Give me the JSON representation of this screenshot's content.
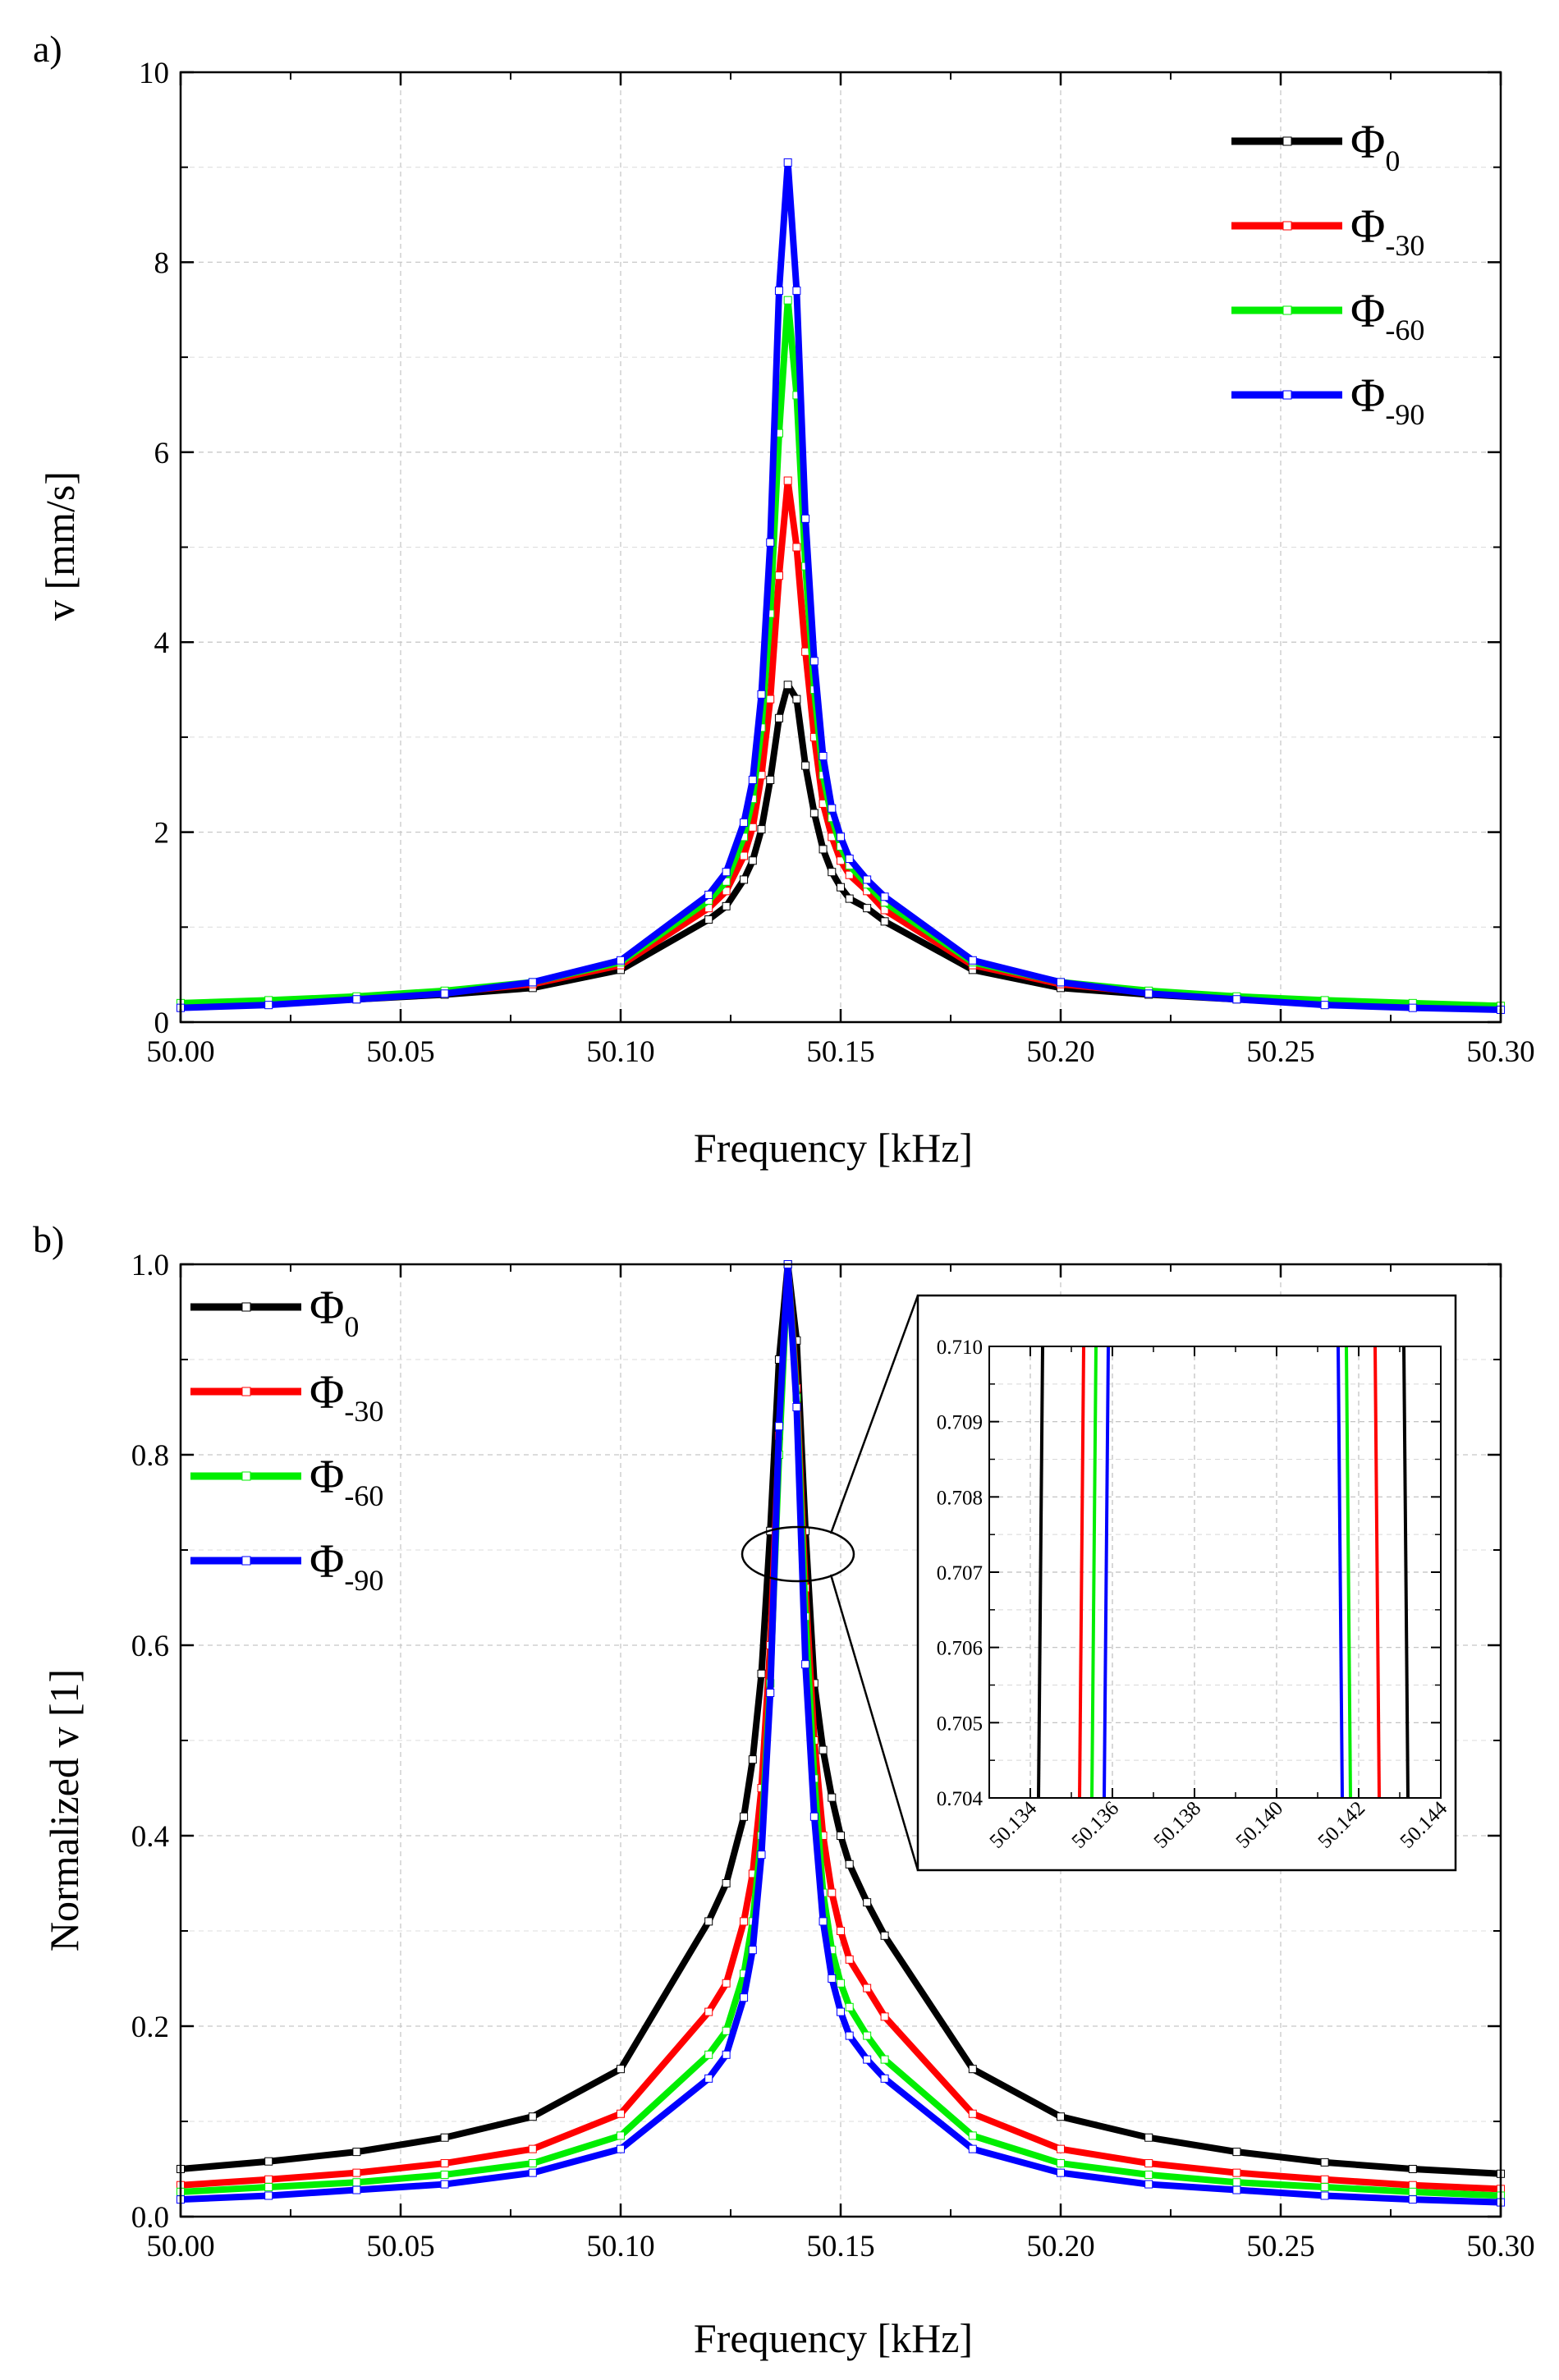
{
  "chart_data": [
    {
      "panel": "a)",
      "type": "line",
      "xlabel": "Frequency [kHz]",
      "ylabel": "v [mm/s]",
      "xlim": [
        50.0,
        50.3
      ],
      "ylim": [
        0,
        10
      ],
      "xticks": [
        "50.00",
        "50.05",
        "50.10",
        "50.15",
        "50.20",
        "50.25",
        "50.30"
      ],
      "yticks": [
        "0",
        "2",
        "4",
        "6",
        "8",
        "10"
      ],
      "grid": true,
      "legend_position": "top-right",
      "x": [
        50.0,
        50.02,
        50.04,
        50.06,
        50.08,
        50.1,
        50.12,
        50.124,
        50.128,
        50.13,
        50.132,
        50.134,
        50.136,
        50.138,
        50.14,
        50.142,
        50.144,
        50.146,
        50.148,
        50.15,
        50.152,
        50.156,
        50.16,
        50.18,
        50.2,
        50.22,
        50.24,
        50.26,
        50.28,
        50.3
      ],
      "series": [
        {
          "name": "Φ",
          "sub": "0",
          "color": "#000000",
          "values": [
            0.17,
            0.2,
            0.24,
            0.29,
            0.36,
            0.55,
            1.08,
            1.22,
            1.5,
            1.7,
            2.03,
            2.55,
            3.2,
            3.55,
            3.4,
            2.7,
            2.2,
            1.82,
            1.58,
            1.42,
            1.3,
            1.2,
            1.06,
            0.55,
            0.36,
            0.29,
            0.24,
            0.2,
            0.17,
            0.15
          ]
        },
        {
          "name": "Φ",
          "sub": "-30",
          "color": "#ff0000",
          "values": [
            0.19,
            0.22,
            0.26,
            0.31,
            0.4,
            0.6,
            1.2,
            1.38,
            1.75,
            2.05,
            2.6,
            3.4,
            4.7,
            5.7,
            5.0,
            3.9,
            3.0,
            2.3,
            1.95,
            1.7,
            1.55,
            1.38,
            1.18,
            0.6,
            0.4,
            0.31,
            0.26,
            0.22,
            0.19,
            0.17
          ]
        },
        {
          "name": "Φ",
          "sub": "-60",
          "color": "#00ee00",
          "values": [
            0.2,
            0.23,
            0.27,
            0.33,
            0.42,
            0.63,
            1.28,
            1.48,
            1.95,
            2.35,
            3.1,
            4.3,
            6.2,
            7.6,
            6.6,
            4.8,
            3.5,
            2.6,
            2.15,
            1.85,
            1.65,
            1.45,
            1.26,
            0.63,
            0.42,
            0.33,
            0.27,
            0.23,
            0.2,
            0.17
          ]
        },
        {
          "name": "Φ",
          "sub": "-90",
          "color": "#0000ff",
          "values": [
            0.15,
            0.18,
            0.24,
            0.3,
            0.42,
            0.65,
            1.34,
            1.58,
            2.1,
            2.55,
            3.45,
            5.05,
            7.7,
            9.05,
            7.7,
            5.3,
            3.8,
            2.8,
            2.25,
            1.95,
            1.72,
            1.5,
            1.32,
            0.65,
            0.42,
            0.3,
            0.24,
            0.18,
            0.15,
            0.13
          ]
        }
      ]
    },
    {
      "panel": "b)",
      "type": "line",
      "xlabel": "Frequency [kHz]",
      "ylabel": "Normalized v [1]",
      "xlim": [
        50.0,
        50.3
      ],
      "ylim": [
        0,
        1.0
      ],
      "xticks": [
        "50.00",
        "50.05",
        "50.10",
        "50.15",
        "50.20",
        "50.25",
        "50.30"
      ],
      "yticks": [
        "0.0",
        "0.2",
        "0.4",
        "0.6",
        "0.8",
        "1.0"
      ],
      "grid": true,
      "legend_position": "top-left",
      "x": [
        50.0,
        50.02,
        50.04,
        50.06,
        50.08,
        50.1,
        50.12,
        50.124,
        50.128,
        50.13,
        50.132,
        50.134,
        50.136,
        50.138,
        50.14,
        50.142,
        50.144,
        50.146,
        50.148,
        50.15,
        50.152,
        50.156,
        50.16,
        50.18,
        50.2,
        50.22,
        50.24,
        50.26,
        50.28,
        50.3
      ],
      "series": [
        {
          "name": "Φ",
          "sub": "0",
          "color": "#000000",
          "values": [
            0.05,
            0.058,
            0.068,
            0.083,
            0.105,
            0.155,
            0.31,
            0.35,
            0.42,
            0.48,
            0.57,
            0.72,
            0.9,
            1.0,
            0.92,
            0.72,
            0.56,
            0.49,
            0.44,
            0.4,
            0.37,
            0.33,
            0.295,
            0.155,
            0.105,
            0.083,
            0.068,
            0.057,
            0.05,
            0.045
          ]
        },
        {
          "name": "Φ",
          "sub": "-30",
          "color": "#ff0000",
          "values": [
            0.033,
            0.039,
            0.046,
            0.056,
            0.071,
            0.108,
            0.215,
            0.245,
            0.31,
            0.36,
            0.45,
            0.6,
            0.82,
            1.0,
            0.87,
            0.66,
            0.5,
            0.4,
            0.34,
            0.3,
            0.27,
            0.24,
            0.21,
            0.108,
            0.071,
            0.056,
            0.046,
            0.039,
            0.033,
            0.029
          ]
        },
        {
          "name": "Φ",
          "sub": "-60",
          "color": "#00ee00",
          "values": [
            0.026,
            0.031,
            0.036,
            0.044,
            0.056,
            0.085,
            0.17,
            0.195,
            0.255,
            0.31,
            0.4,
            0.56,
            0.8,
            1.0,
            0.86,
            0.63,
            0.46,
            0.34,
            0.28,
            0.245,
            0.22,
            0.19,
            0.165,
            0.085,
            0.056,
            0.044,
            0.036,
            0.031,
            0.026,
            0.022
          ]
        },
        {
          "name": "Φ",
          "sub": "-90",
          "color": "#0000ff",
          "values": [
            0.018,
            0.022,
            0.028,
            0.034,
            0.046,
            0.071,
            0.145,
            0.17,
            0.23,
            0.28,
            0.38,
            0.55,
            0.83,
            1.0,
            0.85,
            0.58,
            0.42,
            0.31,
            0.25,
            0.215,
            0.19,
            0.165,
            0.145,
            0.071,
            0.046,
            0.034,
            0.028,
            0.022,
            0.018,
            0.015
          ]
        }
      ]
    },
    {
      "panel": "b-inset",
      "type": "line",
      "xlim": [
        50.133,
        50.144
      ],
      "ylim": [
        0.704,
        0.71
      ],
      "xticks": [
        "50.134",
        "50.136",
        "50.138",
        "50.140",
        "50.142",
        "50.144"
      ],
      "yticks": [
        "0.704",
        "0.705",
        "0.706",
        "0.707",
        "0.708",
        "0.709",
        "0.710"
      ],
      "grid": true,
      "series": [
        {
          "name": "Φ0",
          "color": "#000000",
          "x_at_ylim": [
            [
              50.1342,
              50.1343
            ],
            [
              50.1432,
              50.1431
            ]
          ]
        },
        {
          "name": "Φ-30",
          "color": "#ff0000",
          "x_at_ylim": [
            [
              50.1352,
              50.1353
            ],
            [
              50.1425,
              50.1424
            ]
          ]
        },
        {
          "name": "Φ-60",
          "color": "#00ee00",
          "x_at_ylim": [
            [
              50.1355,
              50.1356
            ],
            [
              50.1418,
              50.1417
            ]
          ]
        },
        {
          "name": "Φ-90",
          "color": "#0000ff",
          "x_at_ylim": [
            [
              50.1358,
              50.1359
            ],
            [
              50.1416,
              50.1415
            ]
          ]
        }
      ]
    }
  ]
}
